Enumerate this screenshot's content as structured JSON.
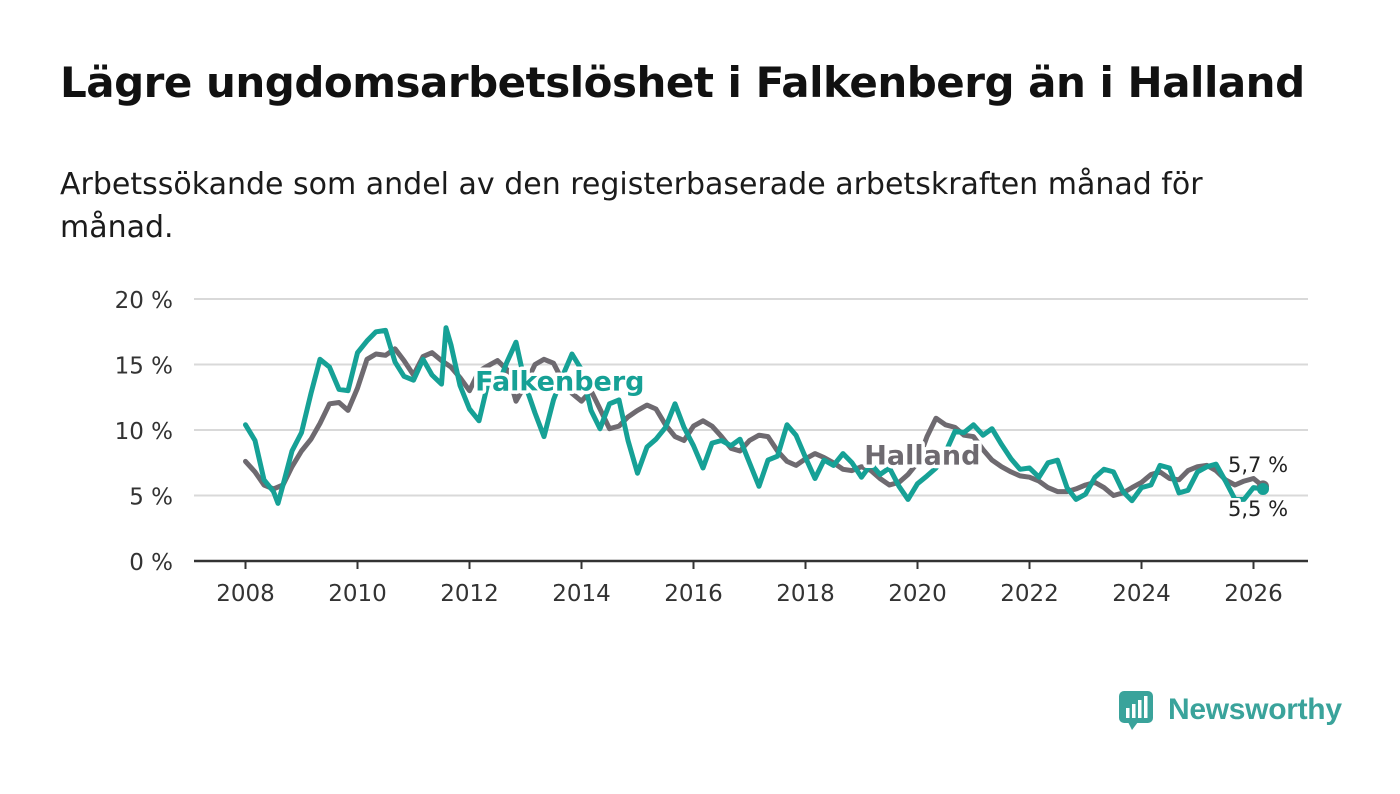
{
  "title": "Lägre ungdomsarbetslöshet i Falkenberg än i Halland",
  "subtitle": "Arbetssökande som andel av den registerbaserade arbetskraften månad för månad.",
  "colors": {
    "falkenberg": "#16a196",
    "halland": "#6e6a70",
    "grid": "#d9d9d9",
    "axis": "#333333"
  },
  "chart_data": {
    "type": "line",
    "title": "Lägre ungdomsarbetslöshet i Falkenberg än i Halland",
    "xlabel": "",
    "ylabel": "",
    "xlim": [
      2008,
      2026.6
    ],
    "ylim": [
      0,
      20
    ],
    "x_ticks": [
      2008,
      2010,
      2012,
      2014,
      2016,
      2018,
      2020,
      2022,
      2024,
      2026
    ],
    "y_ticks": [
      0,
      5,
      10,
      15,
      20
    ],
    "y_tick_labels": [
      "0 %",
      "5 %",
      "10 %",
      "15 %",
      "20 %"
    ],
    "series": [
      {
        "name": "Halland",
        "color": "#6e6a70",
        "label": "Halland",
        "end_label": "5,7 %",
        "points": [
          [
            2008.0,
            7.6
          ],
          [
            2008.17,
            6.8
          ],
          [
            2008.33,
            5.8
          ],
          [
            2008.5,
            5.5
          ],
          [
            2008.67,
            5.8
          ],
          [
            2008.83,
            7.2
          ],
          [
            2009.0,
            8.4
          ],
          [
            2009.17,
            9.3
          ],
          [
            2009.33,
            10.5
          ],
          [
            2009.5,
            12.0
          ],
          [
            2009.67,
            12.1
          ],
          [
            2009.83,
            11.5
          ],
          [
            2010.0,
            13.2
          ],
          [
            2010.17,
            15.4
          ],
          [
            2010.33,
            15.8
          ],
          [
            2010.5,
            15.7
          ],
          [
            2010.67,
            16.2
          ],
          [
            2010.83,
            15.3
          ],
          [
            2011.0,
            14.2
          ],
          [
            2011.17,
            15.6
          ],
          [
            2011.33,
            15.9
          ],
          [
            2011.5,
            15.3
          ],
          [
            2011.67,
            14.8
          ],
          [
            2011.83,
            14.0
          ],
          [
            2012.0,
            13.0
          ],
          [
            2012.17,
            14.5
          ],
          [
            2012.33,
            14.9
          ],
          [
            2012.5,
            15.3
          ],
          [
            2012.67,
            14.6
          ],
          [
            2012.83,
            12.2
          ],
          [
            2013.0,
            13.5
          ],
          [
            2013.17,
            15.0
          ],
          [
            2013.33,
            15.4
          ],
          [
            2013.5,
            15.1
          ],
          [
            2013.67,
            13.7
          ],
          [
            2013.83,
            12.8
          ],
          [
            2014.0,
            12.2
          ],
          [
            2014.17,
            13.0
          ],
          [
            2014.33,
            11.6
          ],
          [
            2014.5,
            10.1
          ],
          [
            2014.67,
            10.3
          ],
          [
            2014.83,
            11.0
          ],
          [
            2015.0,
            11.5
          ],
          [
            2015.17,
            11.9
          ],
          [
            2015.33,
            11.6
          ],
          [
            2015.5,
            10.4
          ],
          [
            2015.67,
            9.5
          ],
          [
            2015.83,
            9.2
          ],
          [
            2016.0,
            10.3
          ],
          [
            2016.17,
            10.7
          ],
          [
            2016.33,
            10.3
          ],
          [
            2016.5,
            9.5
          ],
          [
            2016.67,
            8.6
          ],
          [
            2016.83,
            8.4
          ],
          [
            2017.0,
            9.2
          ],
          [
            2017.17,
            9.6
          ],
          [
            2017.33,
            9.5
          ],
          [
            2017.5,
            8.4
          ],
          [
            2017.67,
            7.6
          ],
          [
            2017.83,
            7.3
          ],
          [
            2018.0,
            7.8
          ],
          [
            2018.17,
            8.2
          ],
          [
            2018.33,
            7.9
          ],
          [
            2018.5,
            7.5
          ],
          [
            2018.67,
            7.0
          ],
          [
            2018.83,
            6.9
          ],
          [
            2019.0,
            7.2
          ],
          [
            2019.17,
            6.9
          ],
          [
            2019.33,
            6.3
          ],
          [
            2019.5,
            5.8
          ],
          [
            2019.67,
            6.0
          ],
          [
            2019.83,
            6.6
          ],
          [
            2020.0,
            7.5
          ],
          [
            2020.17,
            9.5
          ],
          [
            2020.33,
            10.9
          ],
          [
            2020.5,
            10.4
          ],
          [
            2020.67,
            10.2
          ],
          [
            2020.83,
            9.6
          ],
          [
            2021.0,
            9.5
          ],
          [
            2021.17,
            8.5
          ],
          [
            2021.33,
            7.7
          ],
          [
            2021.5,
            7.2
          ],
          [
            2021.67,
            6.8
          ],
          [
            2021.83,
            6.5
          ],
          [
            2022.0,
            6.4
          ],
          [
            2022.17,
            6.1
          ],
          [
            2022.33,
            5.6
          ],
          [
            2022.5,
            5.3
          ],
          [
            2022.67,
            5.3
          ],
          [
            2022.83,
            5.5
          ],
          [
            2023.0,
            5.8
          ],
          [
            2023.17,
            6.0
          ],
          [
            2023.33,
            5.6
          ],
          [
            2023.5,
            5.0
          ],
          [
            2023.67,
            5.2
          ],
          [
            2023.83,
            5.6
          ],
          [
            2024.0,
            6.0
          ],
          [
            2024.17,
            6.6
          ],
          [
            2024.33,
            6.8
          ],
          [
            2024.5,
            6.3
          ],
          [
            2024.67,
            6.2
          ],
          [
            2024.83,
            6.9
          ],
          [
            2025.0,
            7.2
          ],
          [
            2025.17,
            7.3
          ],
          [
            2025.33,
            6.9
          ],
          [
            2025.5,
            6.2
          ],
          [
            2025.67,
            5.8
          ],
          [
            2025.83,
            6.1
          ],
          [
            2026.0,
            6.3
          ],
          [
            2026.17,
            5.7
          ]
        ]
      },
      {
        "name": "Falkenberg",
        "color": "#16a196",
        "label": "Falkenberg",
        "end_label": "5,5 %",
        "points": [
          [
            2008.0,
            10.4
          ],
          [
            2008.17,
            9.2
          ],
          [
            2008.33,
            6.2
          ],
          [
            2008.5,
            5.3
          ],
          [
            2008.58,
            4.4
          ],
          [
            2008.67,
            5.8
          ],
          [
            2008.83,
            8.4
          ],
          [
            2009.0,
            9.8
          ],
          [
            2009.17,
            12.8
          ],
          [
            2009.33,
            15.4
          ],
          [
            2009.5,
            14.8
          ],
          [
            2009.67,
            13.1
          ],
          [
            2009.83,
            13.0
          ],
          [
            2010.0,
            15.9
          ],
          [
            2010.17,
            16.8
          ],
          [
            2010.33,
            17.5
          ],
          [
            2010.5,
            17.6
          ],
          [
            2010.67,
            15.2
          ],
          [
            2010.83,
            14.1
          ],
          [
            2011.0,
            13.8
          ],
          [
            2011.17,
            15.4
          ],
          [
            2011.33,
            14.2
          ],
          [
            2011.5,
            13.5
          ],
          [
            2011.58,
            17.8
          ],
          [
            2011.67,
            16.5
          ],
          [
            2011.83,
            13.4
          ],
          [
            2012.0,
            11.6
          ],
          [
            2012.17,
            10.7
          ],
          [
            2012.33,
            13.6
          ],
          [
            2012.5,
            13.3
          ],
          [
            2012.67,
            15.2
          ],
          [
            2012.83,
            16.7
          ],
          [
            2013.0,
            13.4
          ],
          [
            2013.17,
            11.3
          ],
          [
            2013.33,
            9.5
          ],
          [
            2013.5,
            12.3
          ],
          [
            2013.67,
            14.2
          ],
          [
            2013.83,
            15.8
          ],
          [
            2014.0,
            14.6
          ],
          [
            2014.17,
            11.5
          ],
          [
            2014.33,
            10.1
          ],
          [
            2014.5,
            12.0
          ],
          [
            2014.67,
            12.3
          ],
          [
            2014.83,
            9.2
          ],
          [
            2015.0,
            6.7
          ],
          [
            2015.17,
            8.7
          ],
          [
            2015.33,
            9.3
          ],
          [
            2015.5,
            10.2
          ],
          [
            2015.67,
            12.0
          ],
          [
            2015.83,
            10.2
          ],
          [
            2016.0,
            8.8
          ],
          [
            2016.17,
            7.1
          ],
          [
            2016.33,
            9.0
          ],
          [
            2016.5,
            9.2
          ],
          [
            2016.67,
            8.8
          ],
          [
            2016.83,
            9.3
          ],
          [
            2017.0,
            7.5
          ],
          [
            2017.17,
            5.7
          ],
          [
            2017.33,
            7.7
          ],
          [
            2017.5,
            8.0
          ],
          [
            2017.67,
            10.4
          ],
          [
            2017.83,
            9.6
          ],
          [
            2018.0,
            7.9
          ],
          [
            2018.17,
            6.3
          ],
          [
            2018.33,
            7.7
          ],
          [
            2018.5,
            7.3
          ],
          [
            2018.67,
            8.2
          ],
          [
            2018.83,
            7.5
          ],
          [
            2019.0,
            6.4
          ],
          [
            2019.17,
            7.4
          ],
          [
            2019.33,
            6.6
          ],
          [
            2019.5,
            7.1
          ],
          [
            2019.67,
            5.7
          ],
          [
            2019.83,
            4.7
          ],
          [
            2020.0,
            5.9
          ],
          [
            2020.17,
            6.5
          ],
          [
            2020.33,
            7.1
          ],
          [
            2020.5,
            8.3
          ],
          [
            2020.67,
            9.9
          ],
          [
            2020.83,
            9.8
          ],
          [
            2021.0,
            10.4
          ],
          [
            2021.17,
            9.6
          ],
          [
            2021.33,
            10.1
          ],
          [
            2021.5,
            8.9
          ],
          [
            2021.67,
            7.8
          ],
          [
            2021.83,
            7.0
          ],
          [
            2022.0,
            7.1
          ],
          [
            2022.17,
            6.4
          ],
          [
            2022.33,
            7.5
          ],
          [
            2022.5,
            7.7
          ],
          [
            2022.67,
            5.6
          ],
          [
            2022.83,
            4.7
          ],
          [
            2023.0,
            5.1
          ],
          [
            2023.17,
            6.4
          ],
          [
            2023.33,
            7.0
          ],
          [
            2023.5,
            6.8
          ],
          [
            2023.67,
            5.3
          ],
          [
            2023.83,
            4.6
          ],
          [
            2024.0,
            5.6
          ],
          [
            2024.17,
            5.8
          ],
          [
            2024.33,
            7.3
          ],
          [
            2024.5,
            7.1
          ],
          [
            2024.67,
            5.2
          ],
          [
            2024.83,
            5.4
          ],
          [
            2025.0,
            6.8
          ],
          [
            2025.17,
            7.2
          ],
          [
            2025.33,
            7.4
          ],
          [
            2025.5,
            6.1
          ],
          [
            2025.67,
            4.7
          ],
          [
            2025.83,
            4.7
          ],
          [
            2026.0,
            5.6
          ],
          [
            2026.17,
            5.5
          ]
        ]
      }
    ]
  },
  "logo": {
    "name": "Newsworthy"
  }
}
